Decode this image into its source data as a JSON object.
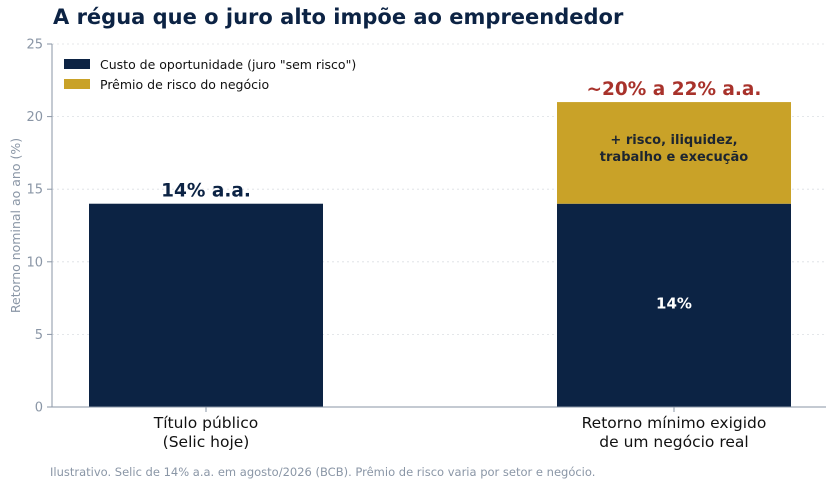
{
  "title": "A régua que o juro alto impõe ao empreendedor",
  "footnote": "Ilustrativo. Selic de 14% a.a. em agosto/2026 (BCB). Prêmio de risco varia por setor e negócio.",
  "colors": {
    "navy": "#0c2344",
    "gold": "#c9a228",
    "red": "#a8322b",
    "axis": "#8a96a6"
  },
  "chart_data": {
    "type": "bar",
    "stacked": true,
    "categories": [
      "Título público\n(Selic hoje)",
      "Retorno mínimo exigido\nde um negócio real"
    ],
    "series": [
      {
        "name": "Custo de oportunidade (juro \"sem risco\")",
        "values": [
          14,
          14
        ],
        "color": "#0c2344"
      },
      {
        "name": "Prêmio de risco do negócio",
        "values": [
          0,
          7
        ],
        "color": "#c9a228"
      }
    ],
    "ylabel": "Retorno nominal ao ano (%)",
    "ylim": [
      0,
      25
    ],
    "yticks": [
      0,
      5,
      10,
      15,
      20,
      25
    ],
    "grid": true,
    "legend_position": "top-left",
    "annotations": {
      "bar1_top": "14% a.a.",
      "bar2_top": "~20% a 22% a.a.",
      "bar2_inside_base": "14%",
      "bar2_inside_premium": "+ risco, iliquidez,\ntrabalho e execução"
    }
  }
}
